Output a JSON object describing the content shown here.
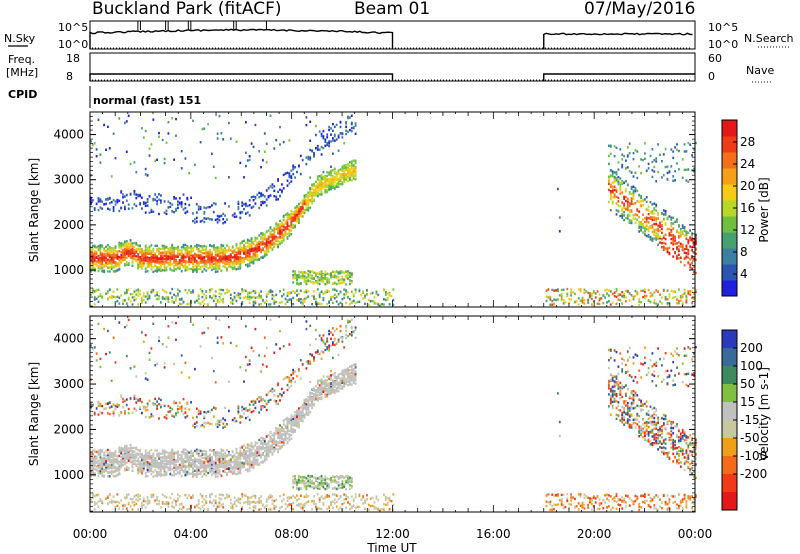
{
  "header": {
    "station": "Buckland Park (fitACF)",
    "beam": "Beam 01",
    "date": "07/May/2016"
  },
  "strips": {
    "nsky_label": "N.Sky",
    "nsky_ticks": [
      "10^5",
      "10^0"
    ],
    "nsearch_label": "N.Search",
    "nsearch_ticks": [
      "10^5",
      "10^0"
    ],
    "freq_label": "Freq.",
    "freq_unit": "[MHz]",
    "freq_ticks": [
      "18",
      "8"
    ],
    "nave_label": "Nave",
    "nave_ticks": [
      "60",
      "0"
    ],
    "cpid_label": "CPID",
    "cpid_value": "normal (fast) 151"
  },
  "x_axis": {
    "label": "Time UT",
    "tick_labels": [
      "00:00",
      "04:00",
      "08:00",
      "12:00",
      "16:00",
      "20:00",
      "00:00"
    ],
    "range_hours": [
      0,
      24
    ]
  },
  "chart_data": [
    {
      "type": "heatmap",
      "quantity": "Power",
      "ylabel": "Slant Range [km]",
      "y_ticks": [
        "1000",
        "2000",
        "3000",
        "4000"
      ],
      "ylim": [
        180,
        4500
      ],
      "colorbar_label": "Power [dB]",
      "colorbar_ticks": [
        "4",
        "8",
        "12",
        "16",
        "20",
        "24",
        "28"
      ],
      "colorbar_range": [
        0,
        32
      ],
      "colors": [
        "#2020e0",
        "#2a55b0",
        "#3b80a0",
        "#46a070",
        "#70c040",
        "#b8d828",
        "#f4cc18",
        "#f6a018",
        "#f47018",
        "#ee3c18",
        "#e41818"
      ],
      "data_gap_hours": [
        12,
        18
      ]
    },
    {
      "type": "heatmap",
      "quantity": "Velocity",
      "ylabel": "Slant Range [km]",
      "y_ticks": [
        "1000",
        "2000",
        "3000",
        "4000"
      ],
      "ylim": [
        180,
        4500
      ],
      "colorbar_label": "Velocity [m s-1]",
      "colorbar_ticks": [
        "200",
        "100",
        "50",
        "15",
        "-15",
        "-50",
        "-100",
        "-200"
      ],
      "colorbar_range": [
        -250,
        250
      ],
      "colors": [
        "#2a3ab8",
        "#3a6a98",
        "#3d8a60",
        "#80c040",
        "#c0c0c0",
        "#c8c8a0",
        "#f0a018",
        "#f46a18",
        "#f03a18",
        "#e41818"
      ],
      "data_gap_hours": [
        12,
        18
      ]
    }
  ]
}
